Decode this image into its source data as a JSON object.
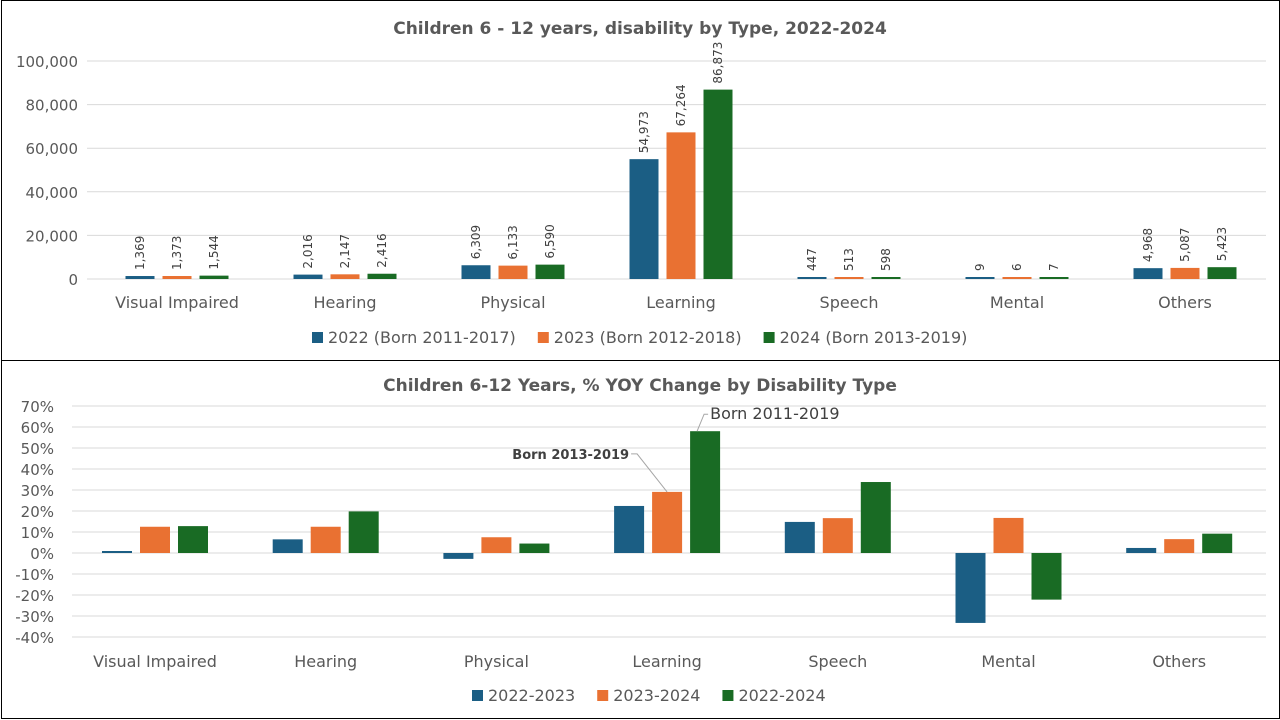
{
  "chart_data": [
    {
      "type": "bar",
      "title": "Children 6 - 12 years, disability by Type, 2022-2024",
      "xlabel": "",
      "ylabel": "",
      "ylim": [
        0,
        100000
      ],
      "yticks": [
        "0",
        "20,000",
        "40,000",
        "60,000",
        "80,000",
        "100,000"
      ],
      "ytick_values": [
        0,
        20000,
        40000,
        60000,
        80000,
        100000
      ],
      "grid": true,
      "legend_position": "bottom",
      "categories": [
        "Visual Impaired",
        "Hearing",
        "Physical",
        "Learning",
        "Speech",
        "Mental",
        "Others"
      ],
      "series": [
        {
          "name": "2022 (Born 2011-2017)",
          "color": "#1b5e84",
          "values": [
            1369,
            2016,
            6309,
            54973,
            447,
            9,
            4968
          ],
          "labels": [
            "1,369",
            "2,016",
            "6,309",
            "54,973",
            "447",
            "9",
            "4,968"
          ]
        },
        {
          "name": "2023 (Born 2012-2018)",
          "color": "#e97132",
          "values": [
            1373,
            2147,
            6133,
            67264,
            513,
            6,
            5087
          ],
          "labels": [
            "1,373",
            "2,147",
            "6,133",
            "67,264",
            "513",
            "6",
            "5,087"
          ]
        },
        {
          "name": "2024 (Born 2013-2019)",
          "color": "#196b24",
          "values": [
            1544,
            2416,
            6590,
            86873,
            598,
            7,
            5423
          ],
          "labels": [
            "1,544",
            "2,416",
            "6,590",
            "86,873",
            "598",
            "7",
            "5,423"
          ]
        }
      ]
    },
    {
      "type": "bar",
      "title": "Children 6-12 Years, % YOY Change by Disability Type",
      "xlabel": "",
      "ylabel": "",
      "ylim": [
        -40,
        70
      ],
      "yticks": [
        "-40%",
        "-30%",
        "-20%",
        "-10%",
        "0%",
        "10%",
        "20%",
        "30%",
        "40%",
        "50%",
        "60%",
        "70%"
      ],
      "ytick_values": [
        -40,
        -30,
        -20,
        -10,
        0,
        10,
        20,
        30,
        40,
        50,
        60,
        70
      ],
      "grid": true,
      "legend_position": "bottom",
      "categories": [
        "Visual Impaired",
        "Hearing",
        "Physical",
        "Learning",
        "Speech",
        "Mental",
        "Others"
      ],
      "series": [
        {
          "name": "2022-2023",
          "color": "#1b5e84",
          "values": [
            0.3,
            6.5,
            -2.8,
            22.4,
            14.8,
            -33.3,
            2.4
          ]
        },
        {
          "name": "2023-2024",
          "color": "#e97132",
          "values": [
            12.5,
            12.5,
            7.5,
            29.1,
            16.6,
            16.7,
            6.6
          ]
        },
        {
          "name": "2022-2024",
          "color": "#196b24",
          "values": [
            12.8,
            19.8,
            4.5,
            58.0,
            33.8,
            -22.2,
            9.2
          ]
        }
      ],
      "annotations": [
        {
          "text": "Born 2013-2019",
          "category": "Learning",
          "series": 1,
          "bold": true
        },
        {
          "text": "Born 2011-2019",
          "category": "Learning",
          "series": 2,
          "bold": false
        }
      ]
    }
  ]
}
